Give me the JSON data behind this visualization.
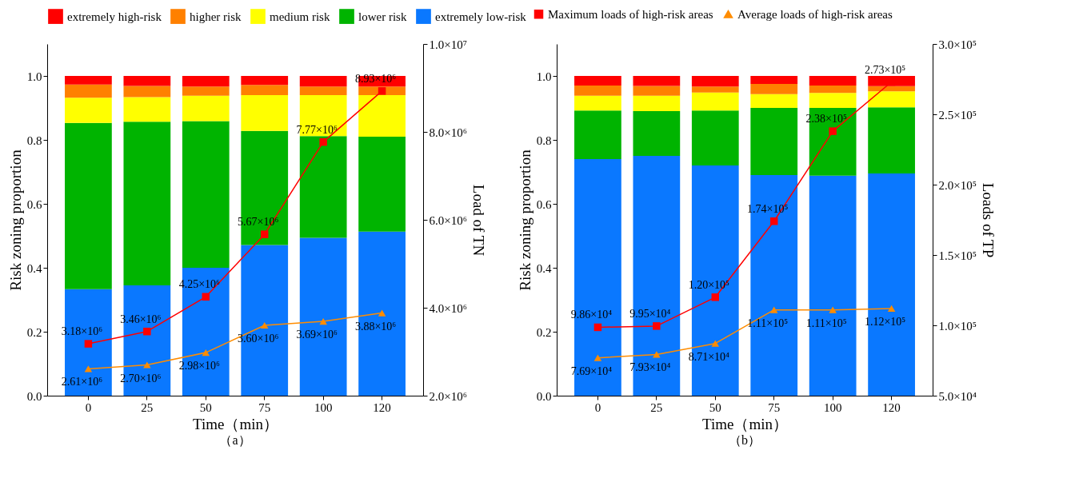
{
  "chart_data": [
    {
      "type": "bar",
      "stacked": true,
      "xlabel": "Time（min）",
      "ylabel": "Risk zoning proportion",
      "y2label": "Load of TN",
      "legend": "top",
      "grid": false,
      "categories": [
        "0",
        "25",
        "50",
        "75",
        "100",
        "120"
      ],
      "ylim": [
        0,
        1.1
      ],
      "yticks": [
        {
          "value": 0,
          "label": "0.0"
        },
        {
          "value": 0.2,
          "label": "0.2"
        },
        {
          "value": 0.4,
          "label": "0.4"
        },
        {
          "value": 0.6,
          "label": "0.6"
        },
        {
          "value": 0.8,
          "label": "0.8"
        },
        {
          "value": 1,
          "label": "1.0"
        }
      ],
      "y2lim": [
        2000000,
        10000000
      ],
      "y2ticks": [
        {
          "value": 2000000,
          "label": "2.0×10⁶"
        },
        {
          "value": 4000000,
          "label": "4.0×10⁶"
        },
        {
          "value": 6000000,
          "label": "6.0×10⁶"
        },
        {
          "value": 8000000,
          "label": "8.0×10⁶"
        },
        {
          "value": 10000000,
          "label": "1.0×10⁷"
        }
      ],
      "series": [
        {
          "name": "extremely low-risk",
          "color": "#0a78ff",
          "values": [
            0.333,
            0.345,
            0.4,
            0.471,
            0.494,
            0.513
          ]
        },
        {
          "name": "lower risk",
          "color": "#00b400",
          "values": [
            0.52,
            0.512,
            0.459,
            0.357,
            0.318,
            0.297
          ]
        },
        {
          "name": "medium risk",
          "color": "#ffff00",
          "values": [
            0.079,
            0.077,
            0.079,
            0.112,
            0.128,
            0.13
          ]
        },
        {
          "name": "higher risk",
          "color": "#ff8000",
          "values": [
            0.041,
            0.035,
            0.029,
            0.032,
            0.027,
            0.027
          ]
        },
        {
          "name": "extremely high-risk",
          "color": "#ff0000",
          "values": [
            0.027,
            0.031,
            0.033,
            0.028,
            0.033,
            0.033
          ]
        },
        {
          "name": "Maximum loads of high-risk areas",
          "type": "line",
          "axis": "y2",
          "marker": "square",
          "line_style": "solid",
          "color": "#ff0000",
          "values": [
            3180000,
            3460000,
            4250000,
            5670000,
            7770000,
            8930000
          ],
          "value_labels": [
            "3.18×10⁶",
            "3.46×10⁶",
            "4.25×10⁶",
            "5.67×10⁶",
            "7.77×10⁶",
            "8.93×10⁶"
          ]
        },
        {
          "name": "Average loads of high-risk areas",
          "type": "line",
          "axis": "y2",
          "marker": "triangle",
          "line_style": "solid",
          "color": "#ff8c00",
          "values": [
            2610000,
            2700000,
            2980000,
            3600000,
            3690000,
            3880000
          ],
          "value_labels": [
            "2.61×10⁶",
            "2.70×10⁶",
            "2.98×10⁶",
            "3.60×10⁶",
            "3.69×10⁶",
            "3.88×10⁶"
          ]
        }
      ],
      "annotations": [
        "（a）"
      ]
    },
    {
      "type": "bar",
      "stacked": true,
      "xlabel": "Time（min）",
      "ylabel": "Risk zoning proportion",
      "y2label": "Loads of TP",
      "grid": false,
      "categories": [
        "0",
        "25",
        "50",
        "75",
        "100",
        "120"
      ],
      "ylim": [
        0,
        1.1
      ],
      "yticks": [
        {
          "value": 0,
          "label": "0.0"
        },
        {
          "value": 0.2,
          "label": "0.2"
        },
        {
          "value": 0.4,
          "label": "0.4"
        },
        {
          "value": 0.6,
          "label": "0.6"
        },
        {
          "value": 0.8,
          "label": "0.8"
        },
        {
          "value": 1,
          "label": "1.0"
        }
      ],
      "y2lim": [
        50000,
        300000
      ],
      "y2ticks": [
        {
          "value": 50000,
          "label": "5.0×10⁴"
        },
        {
          "value": 100000,
          "label": "1.0×10⁵"
        },
        {
          "value": 150000,
          "label": "1.5×10⁵"
        },
        {
          "value": 200000,
          "label": "2.0×10⁵"
        },
        {
          "value": 250000,
          "label": "2.5×10⁵"
        },
        {
          "value": 300000,
          "label": "3.0×10⁵"
        }
      ],
      "series": [
        {
          "name": "extremely low-risk",
          "color": "#0a78ff",
          "values": [
            0.74,
            0.75,
            0.72,
            0.69,
            0.688,
            0.695
          ]
        },
        {
          "name": "lower risk",
          "color": "#00b400",
          "values": [
            0.152,
            0.14,
            0.172,
            0.21,
            0.212,
            0.207
          ]
        },
        {
          "name": "medium risk",
          "color": "#ffff00",
          "values": [
            0.046,
            0.048,
            0.056,
            0.043,
            0.047,
            0.05
          ]
        },
        {
          "name": "higher risk",
          "color": "#ff8000",
          "values": [
            0.032,
            0.031,
            0.019,
            0.032,
            0.023,
            0.016
          ]
        },
        {
          "name": "extremely high-risk",
          "color": "#ff0000",
          "values": [
            0.03,
            0.031,
            0.033,
            0.025,
            0.03,
            0.032
          ]
        },
        {
          "name": "Maximum loads of high-risk areas",
          "type": "line",
          "axis": "y2",
          "marker": "square",
          "line_style": "solid",
          "color": "#ff0000",
          "values": [
            98600,
            99500,
            120000,
            174000,
            238000,
            273000
          ],
          "value_labels": [
            "9.86×10⁴",
            "9.95×10⁴",
            "1.20×10⁵",
            "1.74×10⁵",
            "2.38×10⁵",
            "2.73×10⁵"
          ]
        },
        {
          "name": "Average loads of high-risk areas",
          "type": "line",
          "axis": "y2",
          "marker": "triangle",
          "line_style": "solid",
          "color": "#ff8c00",
          "values": [
            76900,
            79300,
            87100,
            111000,
            111000,
            112000
          ],
          "value_labels": [
            "7.69×10⁴",
            "7.93×10⁴",
            "8.71×10⁴",
            "1.11×10⁵",
            "1.11×10⁵",
            "1.12×10⁵"
          ]
        }
      ],
      "annotations": [
        "（b）"
      ]
    }
  ]
}
